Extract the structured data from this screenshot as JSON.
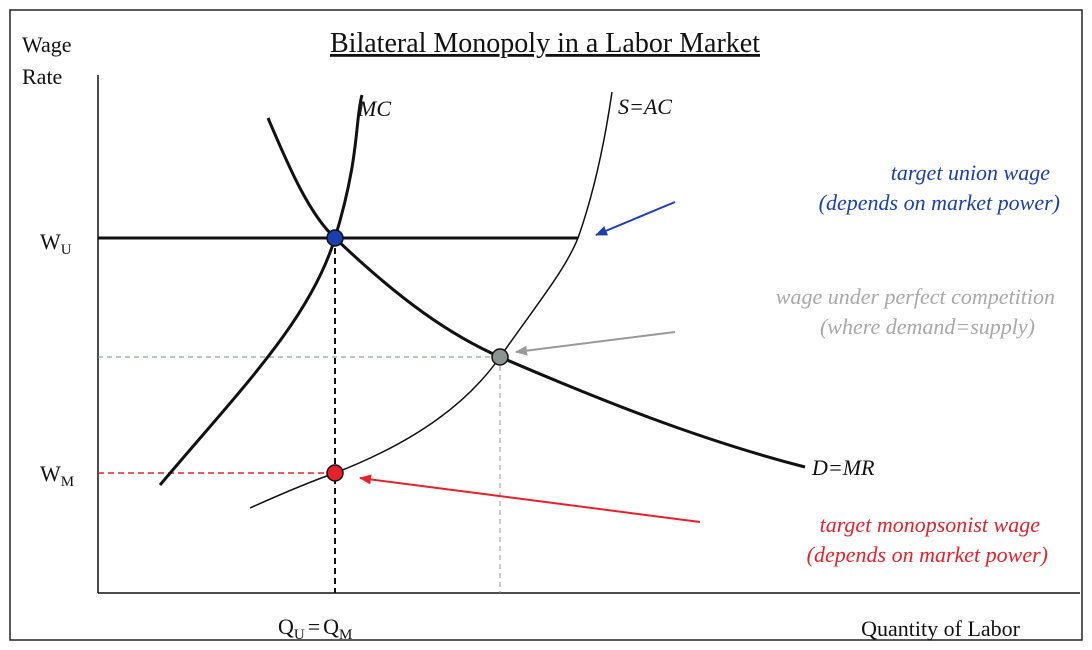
{
  "title": "Bilateral Monopoly in a Labor Market",
  "y_axis_label": [
    "Wage",
    "Rate"
  ],
  "x_axis_label": "Quantity of Labor",
  "wage_union": {
    "main": "W",
    "sub": "U"
  },
  "wage_monopsony": {
    "main": "W",
    "sub": "M"
  },
  "quantity_label": {
    "q1": "Q",
    "sub1": "U",
    "eq": "=",
    "q2": "Q",
    "sub2": "M"
  },
  "curves": {
    "mc": "MC",
    "supply": "S=AC",
    "demand": "D=MR"
  },
  "annotations": {
    "union": [
      "target union wage",
      "(depends on market power)"
    ],
    "competition": [
      "wage under perfect competition",
      "(where demand=supply)"
    ],
    "monopsony": [
      "target monopsonist wage",
      "(depends on market power)"
    ]
  }
}
